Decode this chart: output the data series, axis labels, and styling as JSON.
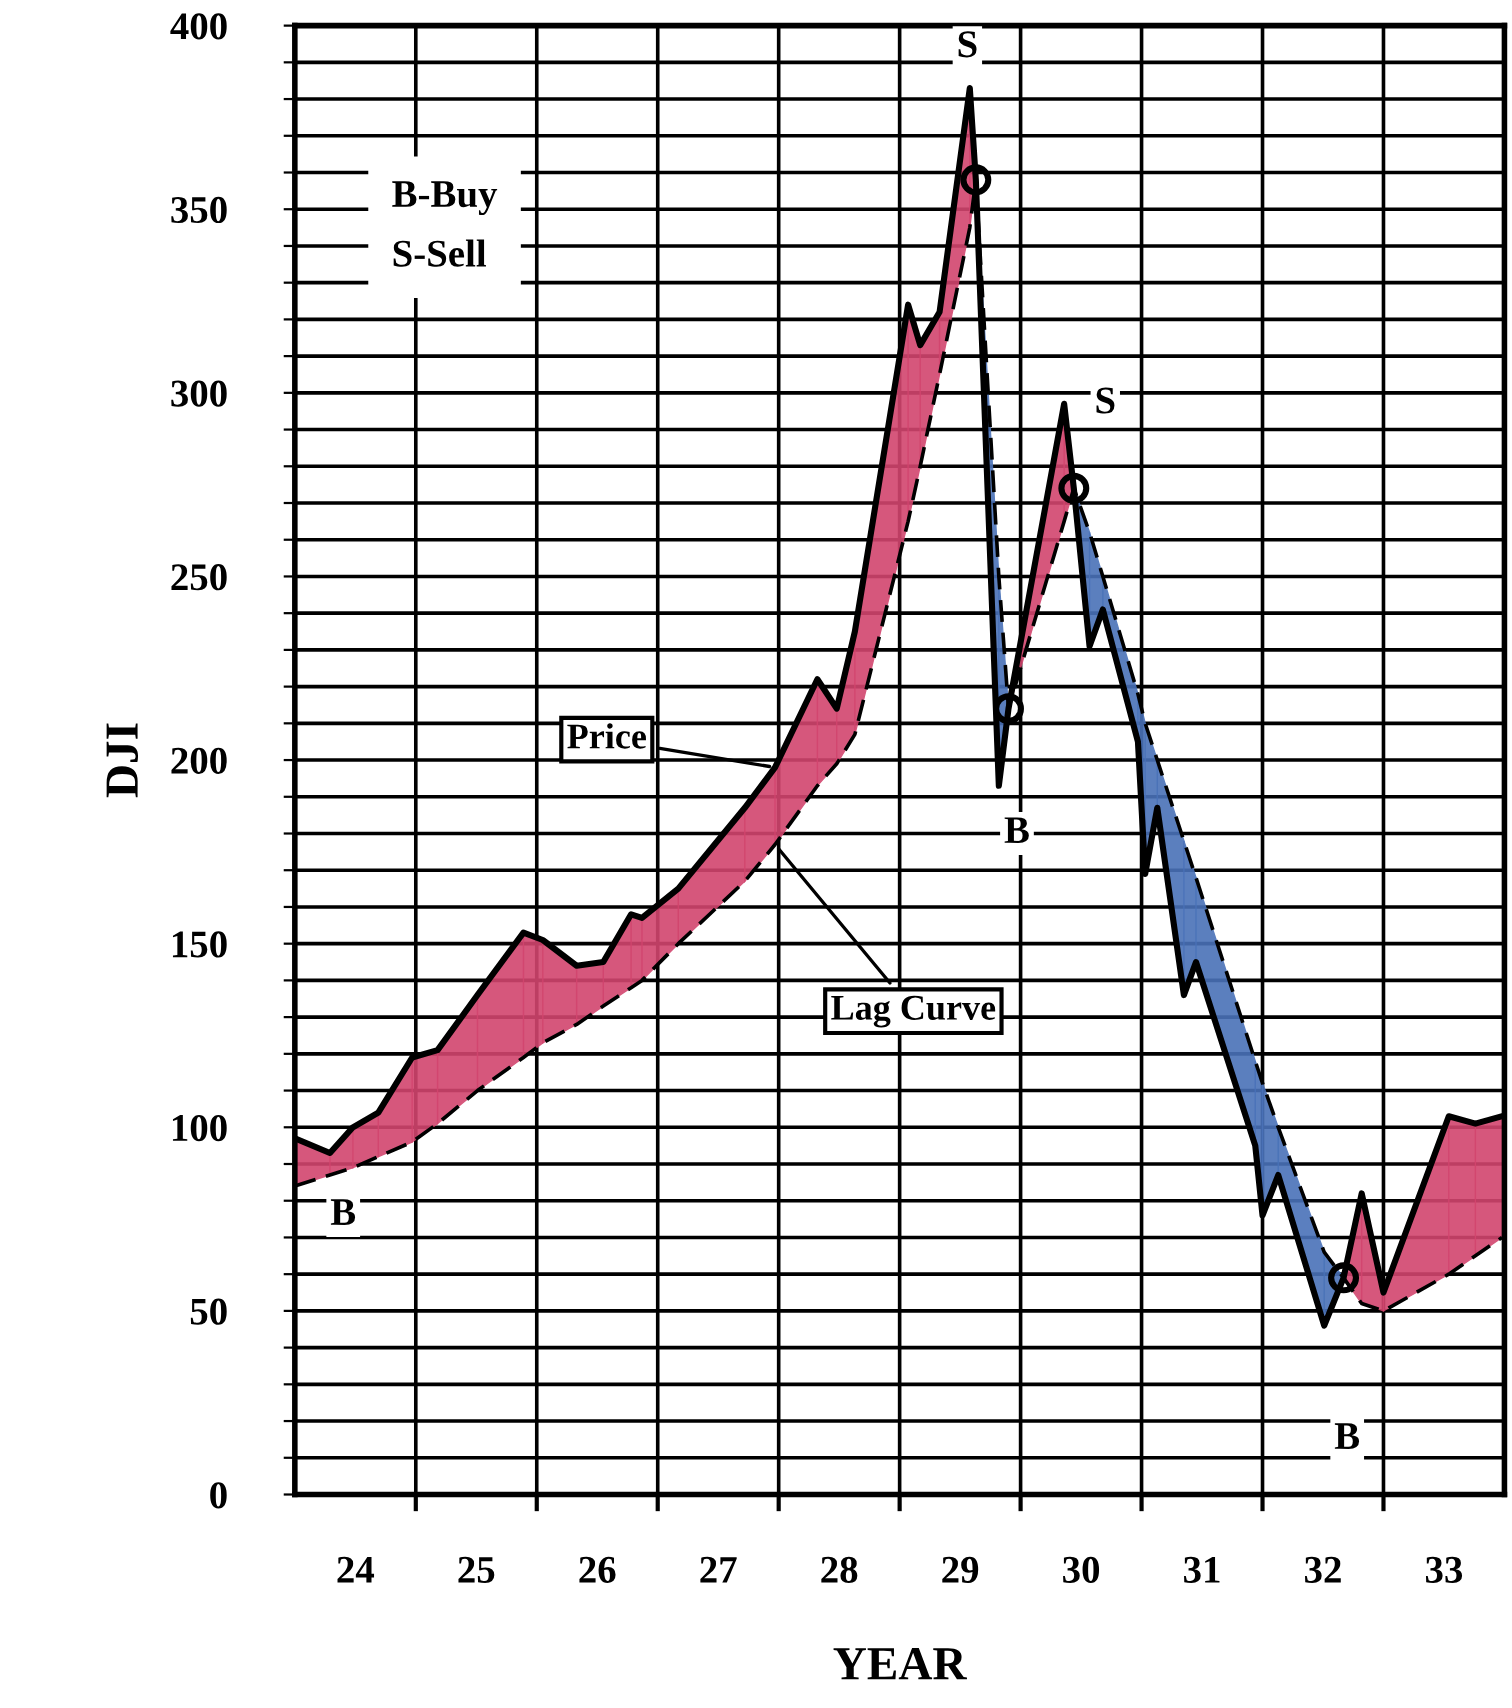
{
  "chart_data": {
    "type": "line",
    "xlabel": "YEAR",
    "ylabel": "DJI",
    "x": [
      23.5,
      23.79,
      23.98,
      24.19,
      24.47,
      24.68,
      25.01,
      25.39,
      25.55,
      25.83,
      26.05,
      26.28,
      26.37,
      26.67,
      27.22,
      27.47,
      27.82,
      27.98,
      28.13,
      28.57,
      28.67,
      28.83,
      29.08,
      29.13,
      29.32,
      29.4,
      29.86,
      29.94,
      30.07,
      30.18,
      30.47,
      30.53,
      30.63,
      30.85,
      30.95,
      31.44,
      31.5,
      31.63,
      32.01,
      32.17,
      32.32,
      32.5,
      33.04,
      33.26,
      33.48
    ],
    "series": [
      {
        "name": "Price",
        "color": "#000000",
        "line_style": "solid",
        "values": [
          97,
          93,
          100,
          104,
          119,
          121,
          136,
          153,
          151,
          144,
          145,
          158,
          157,
          165,
          187,
          198,
          222,
          214,
          235,
          324,
          313,
          322,
          383,
          358,
          193,
          214,
          297,
          274,
          231,
          241,
          205,
          169,
          187,
          136,
          145,
          95,
          76,
          87,
          46,
          59,
          82,
          55,
          103,
          101,
          103
        ],
        "upper": [
          97,
          93,
          100,
          104,
          119,
          121,
          136,
          153,
          151,
          144,
          145,
          158,
          157,
          165,
          187,
          198,
          222,
          214,
          235,
          324,
          313,
          322,
          383,
          358,
          null,
          214,
          297,
          274,
          null,
          null,
          null,
          null,
          null,
          null,
          null,
          null,
          null,
          null,
          null,
          59,
          82,
          55,
          103,
          101,
          103
        ],
        "lower": [
          84,
          87,
          89,
          92,
          96,
          101,
          110,
          119,
          123,
          128,
          133,
          138,
          140,
          150,
          167,
          177,
          193,
          199,
          207,
          265,
          280,
          305,
          345,
          358,
          null,
          214,
          265,
          274,
          null,
          null,
          null,
          null,
          null,
          null,
          null,
          null,
          null,
          null,
          null,
          59,
          52,
          50,
          60,
          65,
          70
        ],
        "colors": [
          "#d2456e",
          "#d2456e",
          "#d2456e",
          "#d2456e",
          "#d2456e",
          "#d2456e",
          "#d2456e",
          "#d2456e",
          "#d2456e",
          "#d2456e",
          "#d2456e",
          "#d2456e",
          "#d2456e",
          "#d2456e",
          "#d2456e",
          "#d2456e",
          "#d2456e",
          "#d2456e",
          "#d2456e",
          "#d2456e",
          "#d2456e",
          "#d2456e",
          "#d2456e",
          "#d2456e",
          "#d2456e",
          "#d2456e",
          "#d2456e",
          "#d2456e",
          "#d2456e",
          "#d2456e",
          "#d2456e",
          "#d2456e",
          "#d2456e",
          "#d2456e",
          "#d2456e",
          "#d2456e",
          "#d2456e",
          "#d2456e",
          "#d2456e",
          "#d2456e",
          "#d2456e",
          "#d2456e",
          "#d2456e",
          "#d2456e",
          "#d2456e"
        ]
      },
      {
        "name": "Lag Curve",
        "color": "#000000",
        "line_style": "dashed",
        "values": [
          84,
          87,
          89,
          92,
          96,
          101,
          110,
          119,
          123,
          128,
          133,
          138,
          140,
          150,
          167,
          177,
          193,
          199,
          207,
          265,
          280,
          305,
          345,
          358,
          250,
          214,
          265,
          274,
          262,
          250,
          218,
          210,
          200,
          178,
          168,
          118,
          112,
          100,
          66,
          59,
          52,
          50,
          60,
          65,
          70
        ],
        "upper": [
          null,
          null,
          null,
          null,
          null,
          null,
          null,
          null,
          null,
          null,
          null,
          null,
          null,
          null,
          null,
          null,
          null,
          null,
          null,
          null,
          null,
          null,
          null,
          358,
          250,
          214,
          null,
          274,
          262,
          250,
          218,
          210,
          200,
          178,
          168,
          118,
          112,
          100,
          66,
          59,
          null,
          null,
          null,
          null,
          null
        ],
        "lower": [
          null,
          null,
          null,
          null,
          null,
          null,
          null,
          null,
          null,
          null,
          null,
          null,
          null,
          null,
          null,
          null,
          null,
          null,
          null,
          null,
          null,
          null,
          null,
          358,
          193,
          214,
          null,
          274,
          231,
          241,
          205,
          169,
          187,
          136,
          145,
          95,
          76,
          87,
          46,
          59,
          null,
          null,
          null,
          null,
          null
        ],
        "colors": [
          "#4a72b8",
          "#4a72b8",
          "#4a72b8",
          "#4a72b8",
          "#4a72b8",
          "#4a72b8",
          "#4a72b8",
          "#4a72b8",
          "#4a72b8",
          "#4a72b8",
          "#4a72b8",
          "#4a72b8",
          "#4a72b8",
          "#4a72b8",
          "#4a72b8",
          "#4a72b8",
          "#4a72b8",
          "#4a72b8",
          "#4a72b8",
          "#4a72b8",
          "#4a72b8",
          "#4a72b8",
          "#4a72b8",
          "#4a72b8",
          "#4a72b8",
          "#4a72b8",
          "#4a72b8",
          "#4a72b8",
          "#4a72b8",
          "#4a72b8",
          "#4a72b8",
          "#4a72b8",
          "#4a72b8",
          "#4a72b8",
          "#4a72b8",
          "#4a72b8",
          "#4a72b8",
          "#4a72b8",
          "#4a72b8",
          "#4a72b8",
          "#4a72b8",
          "#4a72b8",
          "#4a72b8",
          "#4a72b8",
          "#4a72b8"
        ]
      },
      {
        "type": "scatter",
        "marker": "circle",
        "color": "#000000",
        "x": [
          29.13,
          29.4,
          29.94,
          32.17
        ],
        "values": [
          358,
          214,
          274,
          59
        ]
      }
    ],
    "annotations": [
      "B-Buy",
      "S-Sell",
      {
        "text": "S",
        "x": 29.06,
        "y": 394
      },
      {
        "text": "S",
        "x": 30.2,
        "y": 297
      },
      {
        "text": "B",
        "x": 23.9,
        "y": 76
      },
      {
        "text": "B",
        "x": 29.47,
        "y": 180
      },
      {
        "text": "B",
        "x": 32.2,
        "y": 15
      }
    ],
    "xlim": [
      23.5,
      33.5
    ],
    "xticks": [
      {
        "value": 24.5,
        "label": null
      },
      {
        "value": 25.5,
        "label": null
      },
      {
        "value": 26.5,
        "label": null
      },
      {
        "value": 27.5,
        "label": null
      },
      {
        "value": 28.5,
        "label": null
      },
      {
        "value": 29.5,
        "label": null
      },
      {
        "value": 30.5,
        "label": null
      },
      {
        "value": 31.5,
        "label": null
      },
      {
        "value": 32.5,
        "label": null
      },
      24,
      25,
      26,
      27,
      28,
      29,
      30,
      31,
      32,
      33
    ],
    "ylim": [
      0,
      400
    ],
    "yticks": [
      0,
      {
        "value": 10,
        "label": null
      },
      {
        "value": 20,
        "label": null
      },
      {
        "value": 30,
        "label": null
      },
      {
        "value": 40,
        "label": null
      },
      50,
      {
        "value": 60,
        "label": null
      },
      {
        "value": 70,
        "label": null
      },
      {
        "value": 80,
        "label": null
      },
      {
        "value": 90,
        "label": null
      },
      100,
      {
        "value": 110,
        "label": null
      },
      {
        "value": 120,
        "label": null
      },
      {
        "value": 130,
        "label": null
      },
      {
        "value": 140,
        "label": null
      },
      150,
      {
        "value": 160,
        "label": null
      },
      {
        "value": 170,
        "label": null
      },
      {
        "value": 180,
        "label": null
      },
      {
        "value": 190,
        "label": null
      },
      200,
      {
        "value": 210,
        "label": null
      },
      {
        "value": 220,
        "label": null
      },
      {
        "value": 230,
        "label": null
      },
      {
        "value": 240,
        "label": null
      },
      250,
      {
        "value": 260,
        "label": null
      },
      {
        "value": 270,
        "label": null
      },
      {
        "value": 280,
        "label": null
      },
      {
        "value": 290,
        "label": null
      },
      300,
      {
        "value": 310,
        "label": null
      },
      {
        "value": 320,
        "label": null
      },
      {
        "value": 330,
        "label": null
      },
      {
        "value": 340,
        "label": null
      },
      350,
      {
        "value": 360,
        "label": null
      },
      {
        "value": 370,
        "label": null
      },
      {
        "value": 380,
        "label": null
      },
      {
        "value": 390,
        "label": null
      },
      400
    ],
    "grid": true
  }
}
